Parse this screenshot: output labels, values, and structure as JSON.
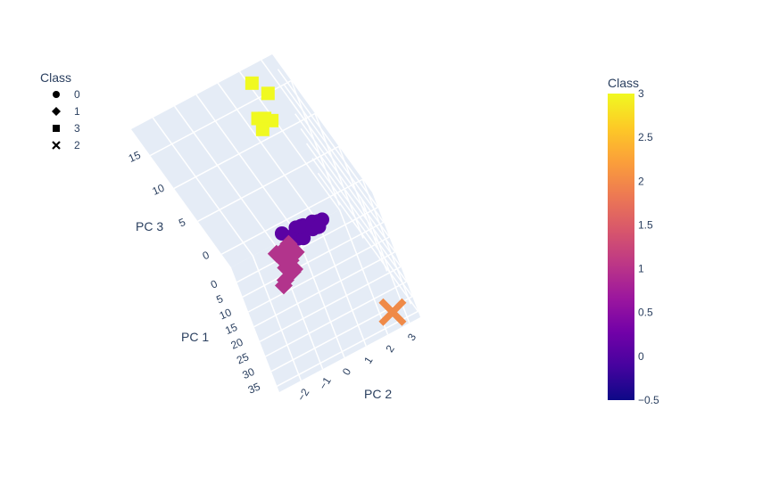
{
  "chart_data": {
    "type": "scatter3d",
    "title": "",
    "axes": {
      "x": {
        "label": "PC 1",
        "range": [
          -5,
          37
        ],
        "ticks": [
          "0",
          "5",
          "10",
          "15",
          "20",
          "25",
          "30",
          "35"
        ]
      },
      "y": {
        "label": "PC 2",
        "range": [
          -3,
          3.5
        ],
        "ticks": [
          "−2",
          "−1",
          "0",
          "1",
          "2",
          "3"
        ]
      },
      "z": {
        "label": "PC 3",
        "range": [
          -2,
          19
        ],
        "ticks": [
          "0",
          "5",
          "10",
          "15"
        ]
      }
    },
    "legend": {
      "title": "Class",
      "placement": "top-left",
      "items": [
        {
          "label": "0",
          "symbol": "circle"
        },
        {
          "label": "1",
          "symbol": "diamond"
        },
        {
          "label": "3",
          "symbol": "square"
        },
        {
          "label": "2",
          "symbol": "x"
        }
      ]
    },
    "colorbar": {
      "title": "Class",
      "range": [
        -0.5,
        3
      ],
      "ticks": [
        "3",
        "2.5",
        "2",
        "1.5",
        "1",
        "0.5",
        "0",
        "−0.5"
      ],
      "colorscale": [
        "#0d0887",
        "#46039f",
        "#7201a8",
        "#9c179e",
        "#bd3786",
        "#d8576b",
        "#ed7953",
        "#fb9f3a",
        "#fdca26",
        "#f0f921"
      ]
    },
    "colors": {
      "0": "#5b02a3",
      "1": "#b2348c",
      "2": "#ef8a48",
      "3": "#f0f921"
    },
    "series": [
      {
        "name": "0",
        "symbol": "circle",
        "points": [
          [
            1.0,
            0.4,
            0.5
          ],
          [
            1.4,
            0.2,
            0.6
          ],
          [
            1.8,
            0.5,
            0.4
          ],
          [
            0.8,
            0.6,
            0.7
          ],
          [
            2.2,
            0.3,
            0.5
          ],
          [
            2.6,
            0.1,
            0.7
          ],
          [
            1.2,
            0.8,
            0.3
          ],
          [
            0.6,
            0.3,
            0.8
          ],
          [
            3.0,
            0.2,
            0.4
          ],
          [
            1.6,
            -0.1,
            0.5
          ],
          [
            2.0,
            0.7,
            0.6
          ],
          [
            3.4,
            0.4,
            0.3
          ],
          [
            0.4,
            0.5,
            0.6
          ],
          [
            2.8,
            0.9,
            0.5
          ],
          [
            1.1,
            1.2,
            0.4
          ],
          [
            0.9,
            1.0,
            0.6
          ],
          [
            1.5,
            1.4,
            0.5
          ],
          [
            2.4,
            1.1,
            0.3
          ],
          [
            0.7,
            -0.3,
            1.0
          ],
          [
            3.8,
            1.2,
            0.8
          ]
        ]
      },
      {
        "name": "1",
        "symbol": "diamond",
        "points": [
          [
            5.0,
            -0.5,
            0.8
          ],
          [
            5.5,
            -0.3,
            0.6
          ],
          [
            6.0,
            -0.6,
            0.9
          ],
          [
            6.5,
            -0.4,
            0.7
          ],
          [
            7.0,
            -0.2,
            0.5
          ],
          [
            7.5,
            -0.5,
            0.6
          ],
          [
            8.0,
            -0.3,
            0.8
          ],
          [
            5.8,
            -0.8,
            1.1
          ],
          [
            6.8,
            -0.7,
            0.4
          ],
          [
            7.8,
            -0.6,
            0.9
          ],
          [
            8.5,
            -0.4,
            0.6
          ],
          [
            9.0,
            -0.5,
            0.7
          ],
          [
            4.6,
            -0.2,
            1.0
          ],
          [
            6.2,
            -0.1,
            0.3
          ],
          [
            9.6,
            -0.7,
            0.5
          ],
          [
            10.2,
            -0.6,
            0.8
          ],
          [
            11.0,
            -0.4,
            0.4
          ],
          [
            12.0,
            -0.5,
            0.6
          ],
          [
            13.0,
            -0.9,
            0.5
          ],
          [
            15.5,
            -1.0,
            1.0
          ]
        ]
      },
      {
        "name": "3",
        "symbol": "square",
        "points": [
          [
            -3.0,
            2.2,
            17.8
          ],
          [
            -2.6,
            2.5,
            15.9
          ],
          [
            -1.4,
            1.6,
            14.2
          ],
          [
            -2.2,
            1.8,
            13.5
          ],
          [
            -1.8,
            2.0,
            13.0
          ],
          [
            -1.2,
            1.5,
            12.8
          ]
        ]
      },
      {
        "name": "2",
        "symbol": "x",
        "points": [
          [
            34.0,
            2.6,
            -1.0
          ]
        ]
      }
    ]
  }
}
